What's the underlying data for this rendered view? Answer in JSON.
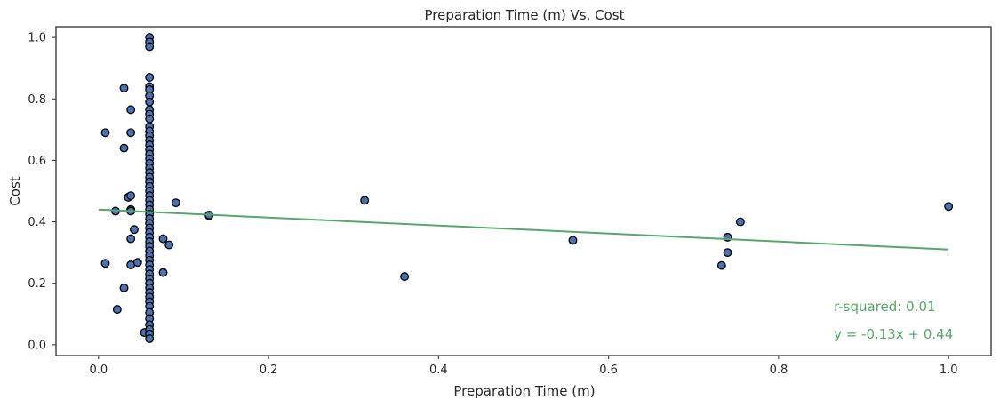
{
  "chart_data": {
    "type": "scatter",
    "title": "Preparation Time (m) Vs. Cost",
    "xlabel": "Preparation Time (m)",
    "ylabel": "Cost",
    "xlim": [
      -0.05,
      1.05
    ],
    "ylim": [
      -0.035,
      1.035
    ],
    "xticks": [
      0.0,
      0.2,
      0.4,
      0.6,
      0.8,
      1.0
    ],
    "xtick_labels": [
      "0.0",
      "0.2",
      "0.4",
      "0.6",
      "0.8",
      "1.0"
    ],
    "yticks": [
      0.0,
      0.2,
      0.4,
      0.6,
      0.8,
      1.0
    ],
    "ytick_labels": [
      "0.0",
      "0.2",
      "0.4",
      "0.6",
      "0.8",
      "1.0"
    ],
    "grid": false,
    "marker_color": "#4c72b0",
    "marker_edge_color": "#000000",
    "fit_line_color": "#55a868",
    "points": [
      [
        0.008,
        0.69
      ],
      [
        0.008,
        0.265
      ],
      [
        0.02,
        0.435
      ],
      [
        0.022,
        0.115
      ],
      [
        0.03,
        0.835
      ],
      [
        0.03,
        0.64
      ],
      [
        0.03,
        0.185
      ],
      [
        0.035,
        0.48
      ],
      [
        0.038,
        0.485
      ],
      [
        0.038,
        0.765
      ],
      [
        0.038,
        0.69
      ],
      [
        0.038,
        0.44
      ],
      [
        0.038,
        0.435
      ],
      [
        0.038,
        0.345
      ],
      [
        0.038,
        0.26
      ],
      [
        0.042,
        0.375
      ],
      [
        0.046,
        0.268
      ],
      [
        0.054,
        0.04
      ],
      [
        0.076,
        0.345
      ],
      [
        0.076,
        0.235
      ],
      [
        0.083,
        0.325
      ],
      [
        0.091,
        0.462
      ],
      [
        0.13,
        0.42
      ],
      [
        0.13,
        0.422
      ],
      [
        0.313,
        0.47
      ],
      [
        0.36,
        0.222
      ],
      [
        0.558,
        0.34
      ],
      [
        0.733,
        0.258
      ],
      [
        0.74,
        0.35
      ],
      [
        0.74,
        0.3
      ],
      [
        0.755,
        0.4
      ],
      [
        1.0,
        0.45
      ],
      [
        0.06,
        1.0
      ],
      [
        0.06,
        0.985
      ],
      [
        0.06,
        0.97
      ],
      [
        0.06,
        0.87
      ],
      [
        0.06,
        0.84
      ],
      [
        0.06,
        0.83
      ],
      [
        0.06,
        0.81
      ],
      [
        0.06,
        0.79
      ],
      [
        0.06,
        0.765
      ],
      [
        0.06,
        0.75
      ],
      [
        0.06,
        0.735
      ],
      [
        0.06,
        0.71
      ],
      [
        0.06,
        0.695
      ],
      [
        0.06,
        0.68
      ],
      [
        0.06,
        0.665
      ],
      [
        0.06,
        0.65
      ],
      [
        0.06,
        0.635
      ],
      [
        0.06,
        0.62
      ],
      [
        0.06,
        0.605
      ],
      [
        0.06,
        0.59
      ],
      [
        0.06,
        0.575
      ],
      [
        0.06,
        0.56
      ],
      [
        0.06,
        0.545
      ],
      [
        0.06,
        0.53
      ],
      [
        0.06,
        0.515
      ],
      [
        0.06,
        0.5
      ],
      [
        0.06,
        0.485
      ],
      [
        0.06,
        0.47
      ],
      [
        0.06,
        0.455
      ],
      [
        0.06,
        0.44
      ],
      [
        0.06,
        0.425
      ],
      [
        0.06,
        0.41
      ],
      [
        0.06,
        0.395
      ],
      [
        0.06,
        0.38
      ],
      [
        0.06,
        0.365
      ],
      [
        0.06,
        0.35
      ],
      [
        0.06,
        0.335
      ],
      [
        0.06,
        0.32
      ],
      [
        0.06,
        0.305
      ],
      [
        0.06,
        0.29
      ],
      [
        0.06,
        0.275
      ],
      [
        0.06,
        0.26
      ],
      [
        0.06,
        0.245
      ],
      [
        0.06,
        0.23
      ],
      [
        0.06,
        0.215
      ],
      [
        0.06,
        0.2
      ],
      [
        0.06,
        0.185
      ],
      [
        0.06,
        0.17
      ],
      [
        0.06,
        0.155
      ],
      [
        0.06,
        0.14
      ],
      [
        0.06,
        0.125
      ],
      [
        0.06,
        0.105
      ],
      [
        0.06,
        0.085
      ],
      [
        0.06,
        0.065
      ],
      [
        0.06,
        0.05
      ],
      [
        0.06,
        0.035
      ],
      [
        0.06,
        0.02
      ]
    ],
    "fit": {
      "slope": -0.13,
      "intercept": 0.44,
      "x_range": [
        0.0,
        1.0
      ]
    },
    "annotations": [
      {
        "text": "r-squared: 0.01",
        "x": 0.865,
        "y": 0.11
      },
      {
        "text": "y = -0.13x + 0.44",
        "x": 0.865,
        "y": 0.02
      }
    ]
  }
}
